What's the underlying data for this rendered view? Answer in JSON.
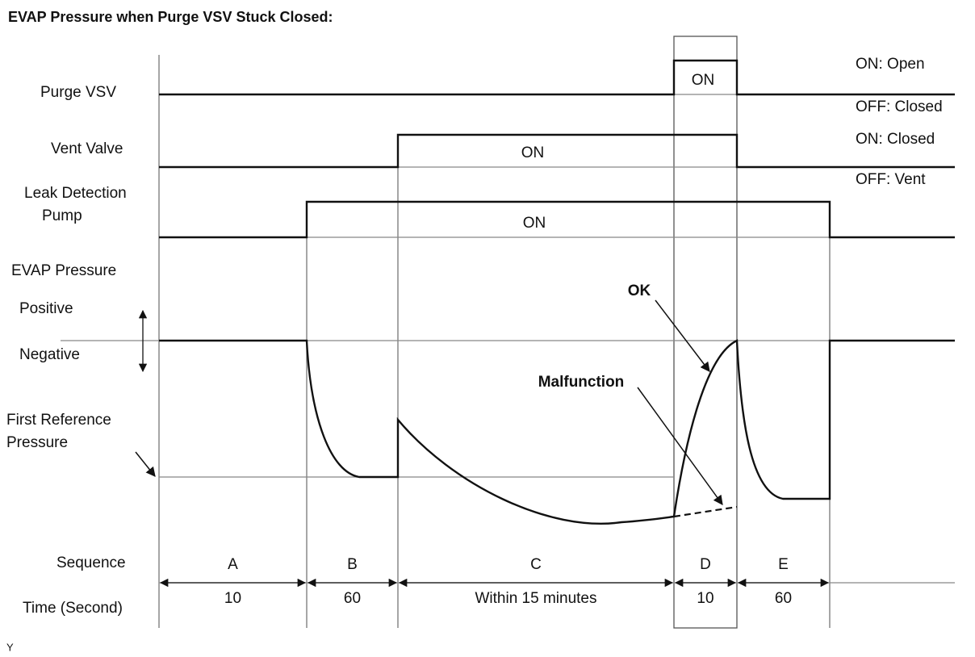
{
  "title": "EVAP Pressure when Purge VSV Stuck Closed:",
  "signals": [
    {
      "label": "Purge VSV",
      "on_label": "ON",
      "states": [
        "ON: Open",
        "OFF: Closed"
      ]
    },
    {
      "label": "Vent Valve",
      "on_label": "ON",
      "states": [
        "ON: Closed",
        "OFF: Vent"
      ]
    },
    {
      "label_lines": [
        "Leak Detection",
        "Pump"
      ],
      "on_label": "ON"
    }
  ],
  "evap": {
    "label": "EVAP Pressure",
    "positive": "Positive",
    "negative": "Negative",
    "reference_lines": [
      "First Reference",
      "Pressure"
    ],
    "ok": "OK",
    "malfunction": "Malfunction"
  },
  "sequence": {
    "label": "Sequence",
    "time_label": "Time (Second)",
    "phases": [
      {
        "name": "A",
        "time": "10"
      },
      {
        "name": "B",
        "time": "60"
      },
      {
        "name": "C",
        "time": "Within 15 minutes"
      },
      {
        "name": "D",
        "time": "10"
      },
      {
        "name": "E",
        "time": "60"
      }
    ]
  },
  "footnote": "Y"
}
